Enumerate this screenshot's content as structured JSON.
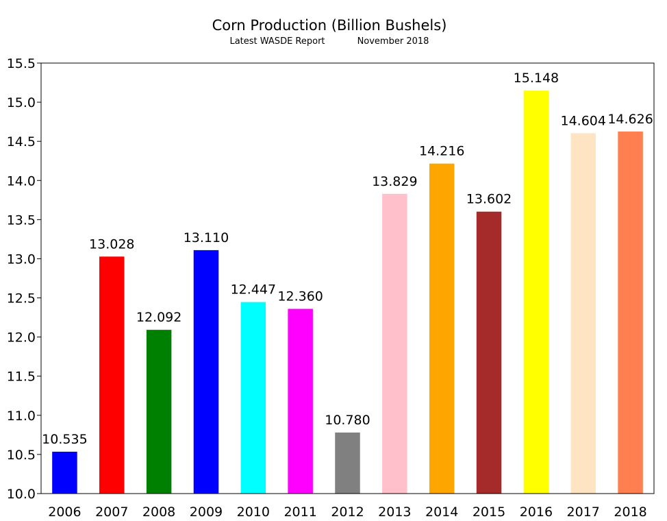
{
  "chart_data": {
    "type": "bar",
    "title": "Corn Production (Billion Bushels)",
    "subtitle_left": "Latest WASDE Report",
    "subtitle_right": "November 2018",
    "xlabel": "",
    "ylabel": "",
    "ylim": [
      10.0,
      15.5
    ],
    "y_ticks": [
      "10.0",
      "10.5",
      "11.0",
      "11.5",
      "12.0",
      "12.5",
      "13.0",
      "13.5",
      "14.0",
      "14.5",
      "15.0",
      "15.5"
    ],
    "grid": false,
    "categories": [
      "2006",
      "2007",
      "2008",
      "2009",
      "2010",
      "2011",
      "2012",
      "2013",
      "2014",
      "2015",
      "2016",
      "2017",
      "2018"
    ],
    "values": [
      10.535,
      13.028,
      12.092,
      13.11,
      12.447,
      12.36,
      10.78,
      13.829,
      14.216,
      13.602,
      15.148,
      14.604,
      14.626
    ],
    "value_labels": [
      "10.535",
      "13.028",
      "12.092",
      "13.110",
      "12.447",
      "12.360",
      "10.780",
      "13.829",
      "14.216",
      "13.602",
      "15.148",
      "14.604",
      "14.626"
    ],
    "colors": [
      "#0000ff",
      "#ff0000",
      "#008000",
      "#0000ff",
      "#00ffff",
      "#ff00ff",
      "#808080",
      "#ffc0cb",
      "#ffa500",
      "#a52a2a",
      "#ffff00",
      "#ffe4c4",
      "#ff7f50"
    ]
  }
}
